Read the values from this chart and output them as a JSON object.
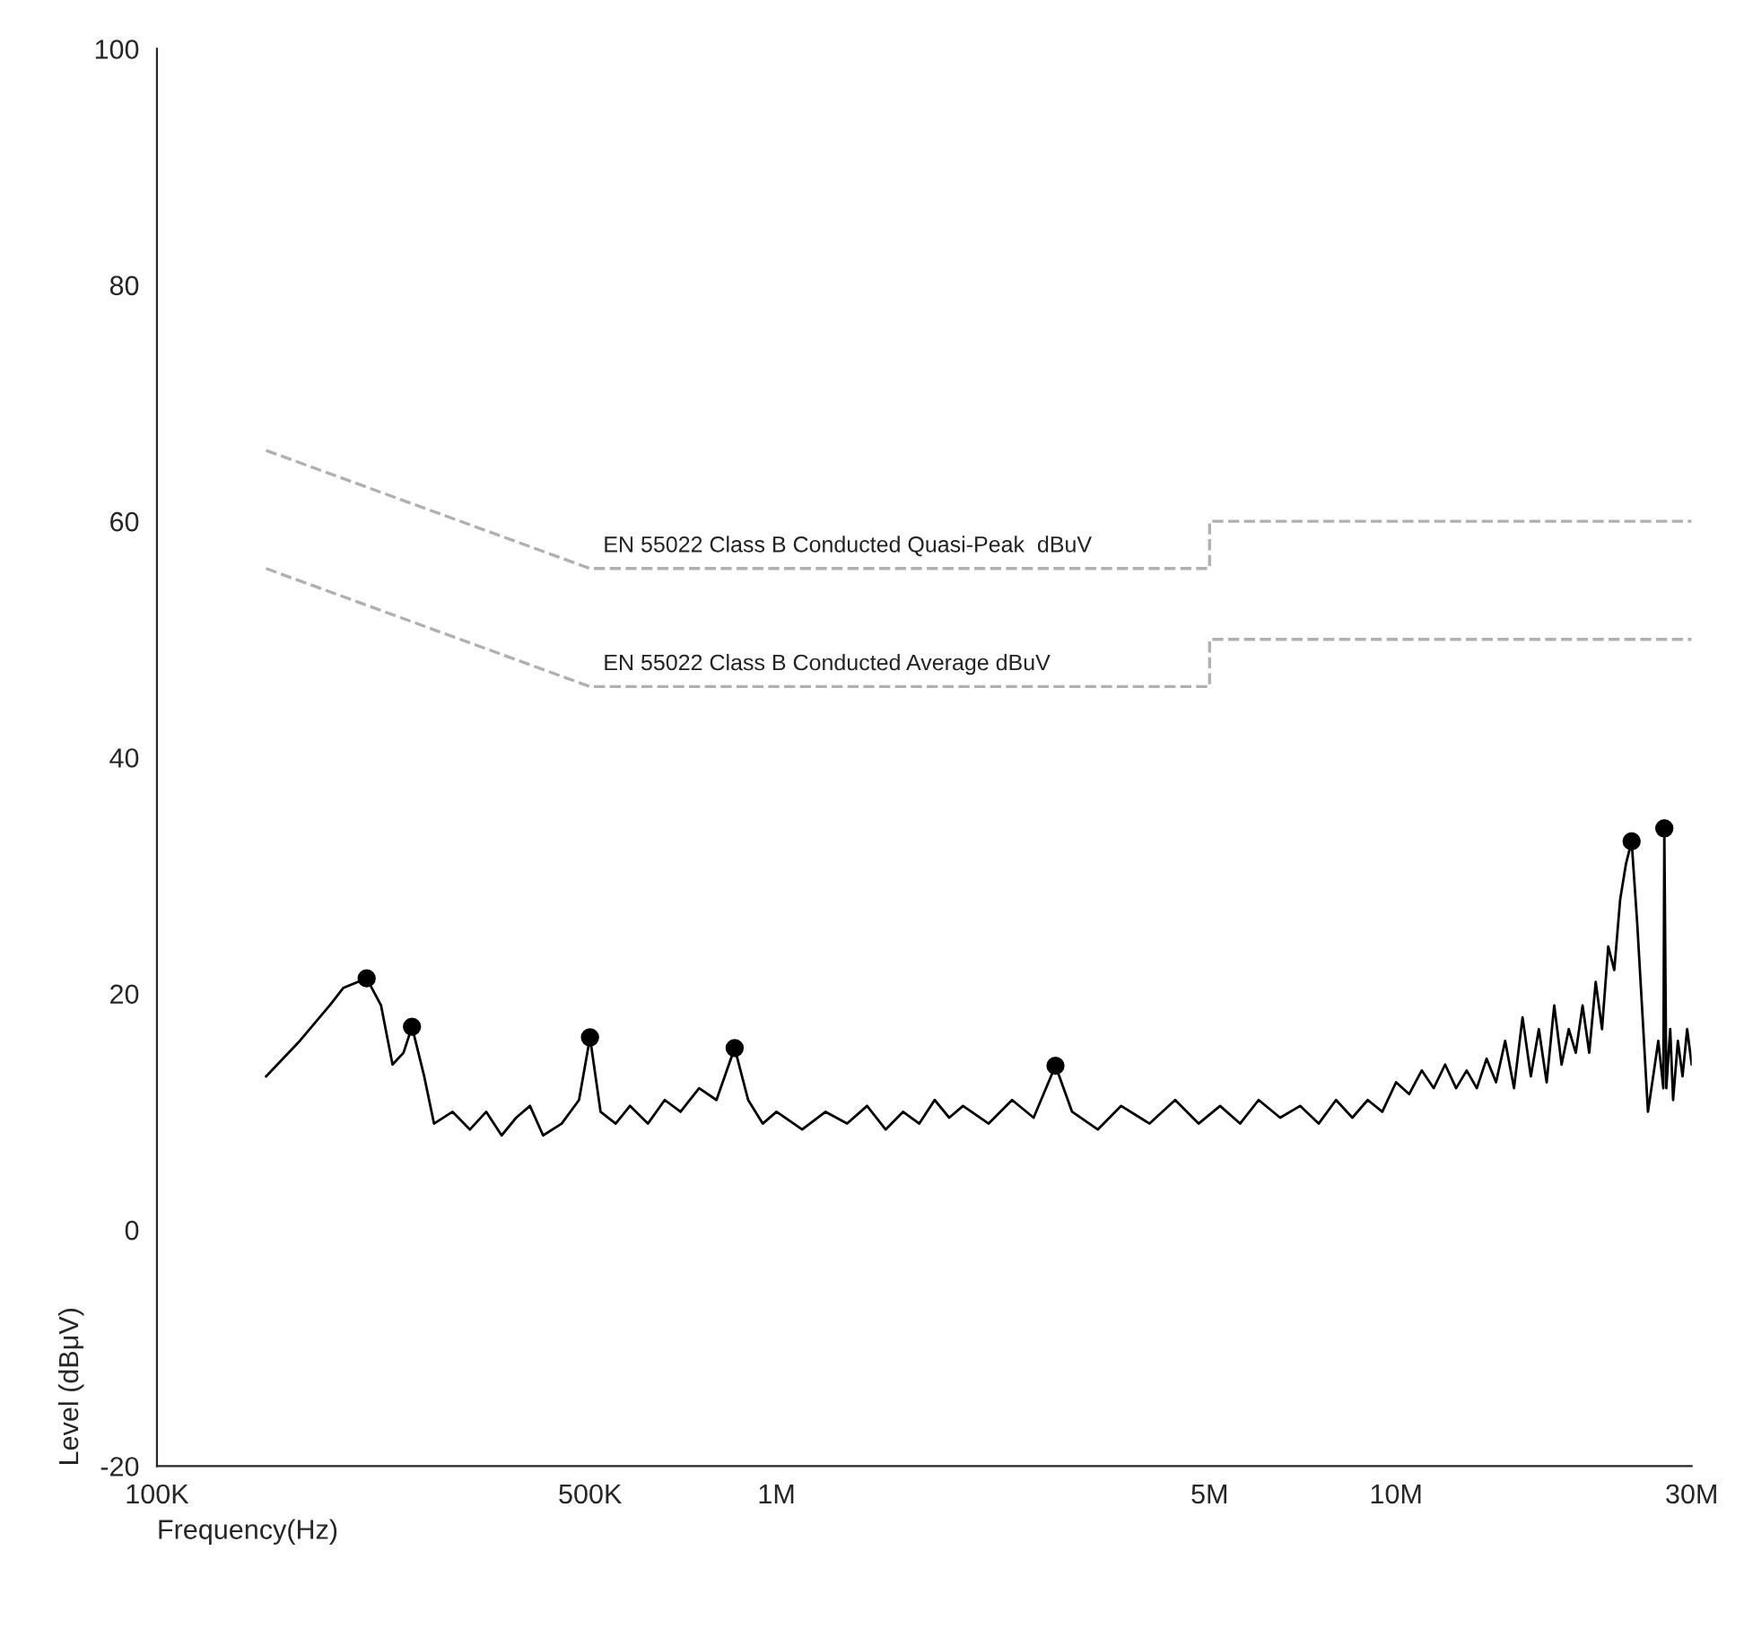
{
  "chart_data": {
    "type": "line",
    "xlabel": "Frequency(Hz)",
    "ylabel": "Level (dBμV)",
    "log": "x",
    "grid": false,
    "legend": false,
    "xlim": [
      100000,
      30000000
    ],
    "xticks": [
      {
        "value": 100000,
        "label": "100K"
      },
      {
        "value": 500000,
        "label": "500K"
      },
      {
        "value": 1000000,
        "label": "1M"
      },
      {
        "value": 5000000,
        "label": "5M"
      },
      {
        "value": 10000000,
        "label": "10M"
      },
      {
        "value": 30000000,
        "label": "30M"
      }
    ],
    "ylim": [
      -20,
      100
    ],
    "yticks": [
      -20,
      0,
      20,
      40,
      60,
      80,
      100
    ],
    "series": [
      {
        "name": "EN 55022 Class B Conducted Quasi-Peak  dBuV",
        "color": "#b0b0b0",
        "line_style": "dashed",
        "marker": "none",
        "x": [
          150000,
          500000,
          500000,
          5000000,
          5000000,
          30000000
        ],
        "values": [
          66,
          56,
          56,
          56,
          60,
          60
        ]
      },
      {
        "name": "EN 55022 Class B Conducted Average dBuV",
        "color": "#b0b0b0",
        "line_style": "dashed",
        "marker": "none",
        "x": [
          150000,
          500000,
          500000,
          5000000,
          5000000,
          30000000
        ],
        "values": [
          56,
          46,
          46,
          46,
          50,
          50
        ]
      },
      {
        "color": "#000000",
        "line_style": "solid",
        "marker": "none",
        "x": [
          150000,
          170000,
          190000,
          200000,
          218000,
          230000,
          240000,
          250000,
          258000,
          270000,
          280000,
          300000,
          320000,
          340000,
          360000,
          380000,
          400000,
          420000,
          450000,
          480000,
          500000,
          520000,
          550000,
          580000,
          620000,
          660000,
          700000,
          750000,
          800000,
          856000,
          900000,
          950000,
          1000000,
          1100000,
          1200000,
          1300000,
          1400000,
          1500000,
          1600000,
          1700000,
          1800000,
          1900000,
          2000000,
          2200000,
          2400000,
          2600000,
          2820000,
          3000000,
          3300000,
          3600000,
          4000000,
          4400000,
          4800000,
          5200000,
          5600000,
          6000000,
          6500000,
          7000000,
          7500000,
          8000000,
          8500000,
          9000000,
          9500000,
          10000000,
          10500000,
          11000000,
          11500000,
          12000000,
          12500000,
          13000000,
          13500000,
          14000000,
          14500000,
          15000000,
          15500000,
          16000000,
          16500000,
          17000000,
          17500000,
          18000000,
          18500000,
          19000000,
          19500000,
          20000000,
          20500000,
          21000000,
          21500000,
          22000000,
          22500000,
          23000000,
          23500000,
          24000000,
          24500000,
          25000000,
          25500000,
          26000000,
          26500000,
          27000000,
          27100000,
          27300000,
          27700000,
          28000000,
          28500000,
          29000000,
          29500000,
          30000000
        ],
        "values": [
          13,
          16,
          19,
          20.5,
          21.3,
          19,
          14,
          15,
          17.2,
          13,
          9,
          10,
          8.5,
          10,
          8,
          9.5,
          10.5,
          8,
          9,
          11,
          16.3,
          10,
          9,
          10.5,
          9,
          11,
          10,
          12,
          11,
          15.4,
          11,
          9,
          10,
          8.5,
          10,
          9,
          10.5,
          8.5,
          10,
          9,
          11,
          9.5,
          10.5,
          9,
          11,
          9.5,
          13.9,
          10,
          8.5,
          10.5,
          9,
          11,
          9,
          10.5,
          9,
          11,
          9.5,
          10.5,
          9,
          11,
          9.5,
          11,
          10,
          12.5,
          11.5,
          13.5,
          12,
          14,
          12,
          13.5,
          12,
          14.5,
          12.5,
          16,
          12,
          18,
          13,
          17,
          12.5,
          19,
          14,
          17,
          15,
          19,
          15,
          21,
          17,
          24,
          22,
          28,
          31,
          32.9,
          26,
          18,
          10,
          13,
          16,
          12,
          34,
          12,
          17,
          11,
          16,
          13,
          17,
          14
        ]
      },
      {
        "type": "scatter",
        "color": "#000000",
        "marker": "circle",
        "x": [
          218000,
          258000,
          500000,
          856000,
          2820000,
          24000000,
          27100000
        ],
        "values": [
          21.3,
          17.2,
          16.3,
          15.4,
          13.9,
          32.9,
          34
        ]
      }
    ]
  }
}
